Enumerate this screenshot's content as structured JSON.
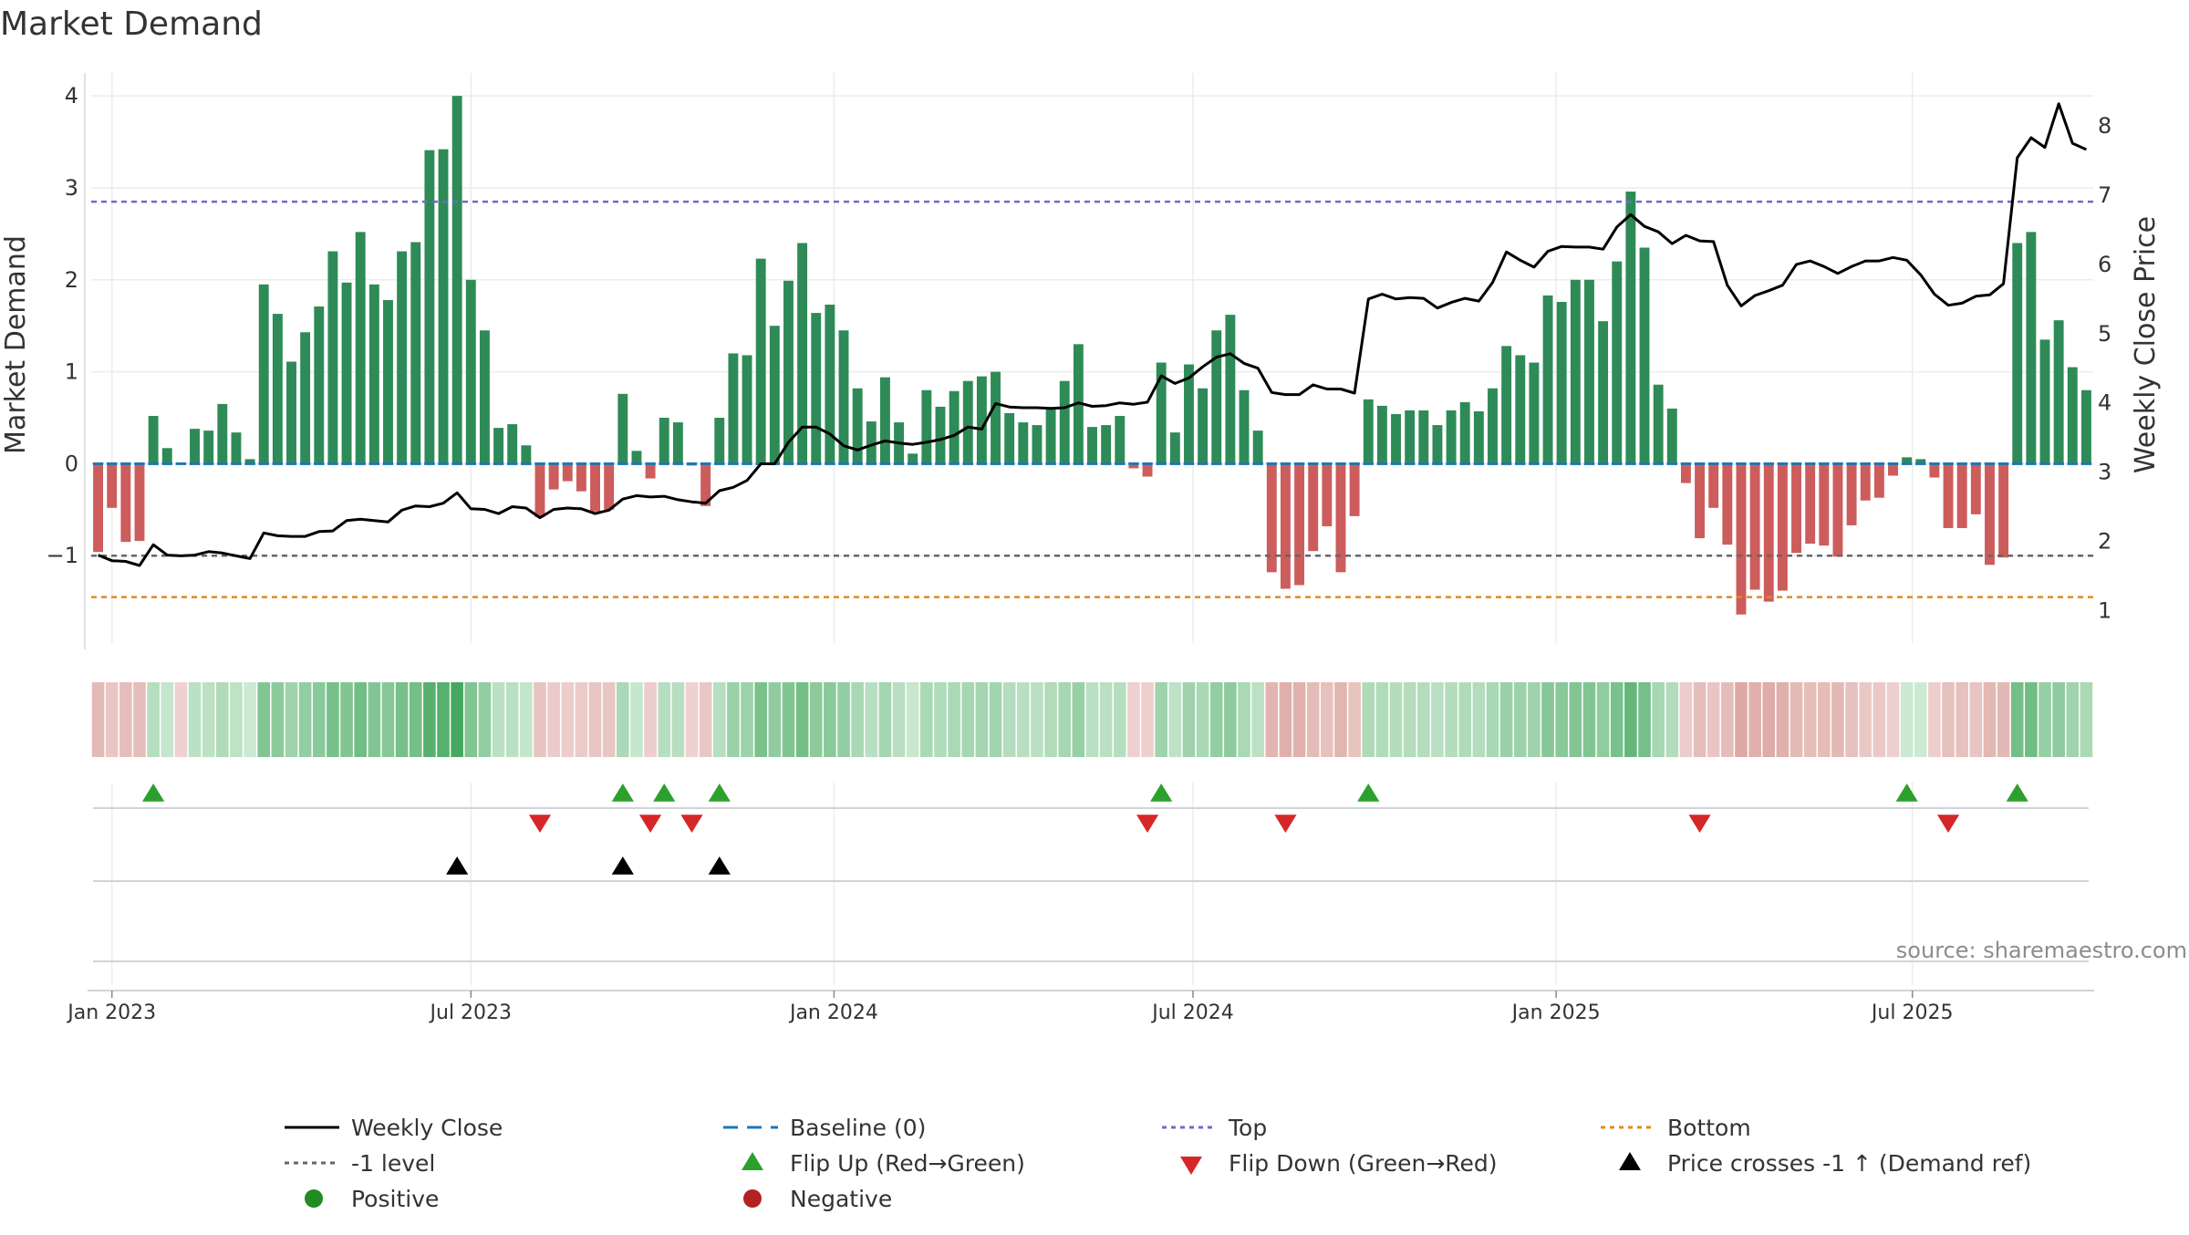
{
  "chart_data": {
    "type": "bar",
    "title": "Market Demand",
    "ylabel_left": "Market Demand",
    "ylabel_right": "Weekly Close Price",
    "source": "source: sharemaestro.com",
    "left_ylim": [
      -1.95,
      4.2
    ],
    "left_yticks": [
      {
        "v": 4,
        "label": "4"
      },
      {
        "v": 3,
        "label": "3"
      },
      {
        "v": 2,
        "label": "2"
      },
      {
        "v": 1,
        "label": "1"
      },
      {
        "v": 0,
        "label": "0"
      },
      {
        "v": -1,
        "label": "−1"
      }
    ],
    "right_ylim": [
      0.53,
      8.7
    ],
    "right_yticks": [
      {
        "v": 8,
        "label": "8"
      },
      {
        "v": 7,
        "label": "7"
      },
      {
        "v": 6,
        "label": "6"
      },
      {
        "v": 5,
        "label": "5"
      },
      {
        "v": 4,
        "label": "4"
      },
      {
        "v": 3,
        "label": "3"
      },
      {
        "v": 2,
        "label": "2"
      },
      {
        "v": 1,
        "label": "1"
      }
    ],
    "xticks": [
      {
        "week": 1,
        "label": "Jan 2023"
      },
      {
        "week": 27,
        "label": "Jul 2023"
      },
      {
        "week": 53.3,
        "label": "Jan 2024"
      },
      {
        "week": 79.3,
        "label": "Jul 2024"
      },
      {
        "week": 105.6,
        "label": "Jan 2025"
      },
      {
        "week": 131.4,
        "label": "Jul 2025"
      }
    ],
    "levels": {
      "top": 2.85,
      "bottom": -1.45,
      "minus_one": -1,
      "baseline": 0
    },
    "colors": {
      "positive": "#2e8b57",
      "negative": "#cd5c5c",
      "close": "#000000",
      "top": "#6b6bc8",
      "bottom": "#e08a1e",
      "minus_one": "#666666",
      "baseline": "#1f77b4",
      "flip_up": "#2ca02c",
      "flip_down": "#d62728",
      "cross": "#000000",
      "legend_positive": "#228b22",
      "legend_negative": "#b22222"
    },
    "demand": [
      -0.96,
      -0.48,
      -0.85,
      -0.84,
      0.52,
      0.17,
      0,
      0.38,
      0.36,
      0.65,
      0.34,
      0.05,
      1.95,
      1.63,
      1.11,
      1.43,
      1.71,
      2.31,
      1.97,
      2.52,
      1.95,
      1.78,
      2.31,
      2.41,
      3.41,
      3.42,
      4.0,
      2.0,
      1.45,
      0.39,
      0.43,
      0.2,
      -0.58,
      -0.28,
      -0.19,
      -0.3,
      -0.52,
      -0.5,
      0.76,
      0.14,
      -0.16,
      0.5,
      0.45,
      -0.02,
      -0.46,
      0.5,
      1.2,
      1.18,
      2.23,
      1.5,
      1.99,
      2.4,
      1.64,
      1.73,
      1.45,
      0.82,
      0.46,
      0.94,
      0.45,
      0.11,
      0.8,
      0.62,
      0.79,
      0.9,
      0.95,
      1.0,
      0.55,
      0.45,
      0.42,
      0.6,
      0.9,
      1.3,
      0.4,
      0.42,
      0.52,
      -0.05,
      -0.14,
      1.1,
      0.34,
      1.08,
      0.82,
      1.45,
      1.62,
      0.8,
      0.36,
      -1.18,
      -1.36,
      -1.32,
      -0.95,
      -0.68,
      -1.18,
      -0.57,
      0.7,
      0.63,
      0.54,
      0.58,
      0.58,
      0.42,
      0.58,
      0.67,
      0.57,
      0.82,
      1.28,
      1.18,
      1.1,
      1.83,
      1.76,
      2.0,
      2.0,
      1.55,
      2.2,
      2.96,
      2.35,
      0.86,
      0.6,
      -0.21,
      -0.81,
      -0.48,
      -0.88,
      -1.64,
      -1.37,
      -1.5,
      -1.38,
      -0.97,
      -0.87,
      -0.89,
      -1.01,
      -0.67,
      -0.4,
      -0.37,
      -0.13,
      0.07,
      0.05,
      -0.15,
      -0.7,
      -0.7,
      -0.55,
      -1.1,
      -1.02,
      2.4,
      2.52,
      1.35,
      1.56,
      1.05,
      0.8
    ],
    "close": [
      1.8,
      1.72,
      1.71,
      1.65,
      1.95,
      1.8,
      1.79,
      1.8,
      1.85,
      1.83,
      1.79,
      1.75,
      2.12,
      2.08,
      2.07,
      2.07,
      2.14,
      2.15,
      2.3,
      2.32,
      2.3,
      2.28,
      2.45,
      2.51,
      2.5,
      2.55,
      2.7,
      2.47,
      2.46,
      2.4,
      2.5,
      2.48,
      2.34,
      2.46,
      2.48,
      2.47,
      2.4,
      2.45,
      2.61,
      2.66,
      2.64,
      2.65,
      2.6,
      2.57,
      2.55,
      2.73,
      2.78,
      2.88,
      3.12,
      3.12,
      3.43,
      3.65,
      3.65,
      3.55,
      3.38,
      3.32,
      3.39,
      3.45,
      3.42,
      3.4,
      3.43,
      3.47,
      3.53,
      3.65,
      3.62,
      3.99,
      3.94,
      3.93,
      3.93,
      3.92,
      3.93,
      4.0,
      3.95,
      3.96,
      4.0,
      3.98,
      4.01,
      4.39,
      4.28,
      4.36,
      4.52,
      4.66,
      4.71,
      4.57,
      4.5,
      4.15,
      4.12,
      4.12,
      4.26,
      4.2,
      4.2,
      4.14,
      5.5,
      5.57,
      5.5,
      5.52,
      5.51,
      5.37,
      5.45,
      5.51,
      5.47,
      5.74,
      6.18,
      6.06,
      5.96,
      6.19,
      6.26,
      6.25,
      6.25,
      6.22,
      6.54,
      6.72,
      6.55,
      6.47,
      6.3,
      6.42,
      6.34,
      6.33,
      5.7,
      5.4,
      5.55,
      5.62,
      5.7,
      6.0,
      6.05,
      5.97,
      5.87,
      5.97,
      6.05,
      6.05,
      6.1,
      6.06,
      5.85,
      5.57,
      5.41,
      5.44,
      5.54,
      5.56,
      5.72,
      7.54,
      7.83,
      7.69,
      8.32,
      7.75,
      7.66
    ],
    "flip_up": [
      4,
      38,
      41,
      45,
      77,
      92,
      131,
      139
    ],
    "flip_down": [
      32,
      40,
      43,
      76,
      86,
      116,
      134
    ],
    "price_crosses_minus1": [
      26,
      38,
      45
    ]
  },
  "legend": {
    "weekly_close": "Weekly Close",
    "baseline": "Baseline (0)",
    "top": "Top",
    "bottom": "Bottom",
    "minus_one": "-1 level",
    "flip_up": "Flip Up (Red→Green)",
    "flip_down": "Flip Down (Green→Red)",
    "cross": "Price crosses -1 ↑ (Demand ref)",
    "positive": "Positive",
    "negative": "Negative"
  }
}
